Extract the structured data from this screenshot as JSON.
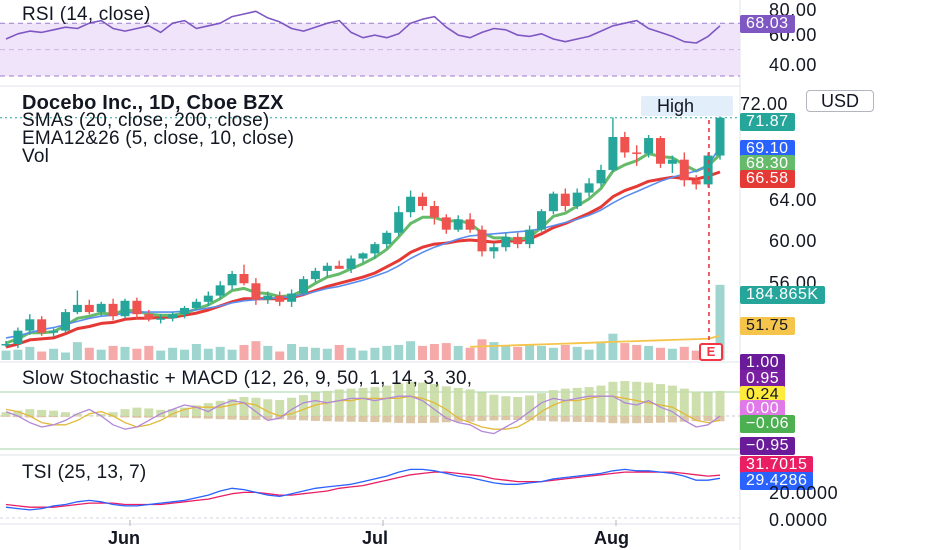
{
  "symbol_title": "Docebo Inc., 1D, Cboe BZX",
  "indicators": {
    "smas": "SMAs (20, close, 200, close)",
    "ema": "EMA12&26 (5, close, 10, close)",
    "vol": "Vol"
  },
  "currency_label": "USD",
  "high_label": "High",
  "earnings_marker": "E",
  "rsi": {
    "title": "RSI (14, close)",
    "scale": [
      "80.00",
      "60.00",
      "40.00"
    ],
    "value_tag": "68.03",
    "values": [
      58,
      62,
      64,
      63,
      65,
      67,
      66,
      70,
      72,
      66,
      64,
      66,
      68,
      63,
      70,
      72,
      66,
      68,
      70,
      75,
      77,
      79,
      74,
      71,
      66,
      64,
      67,
      70,
      72,
      63,
      59,
      61,
      59,
      62,
      70,
      73,
      75,
      67,
      61,
      59,
      63,
      66,
      65,
      61,
      60,
      62,
      58,
      56,
      58,
      60,
      64,
      68,
      70,
      72,
      66,
      63,
      60,
      56,
      55,
      60,
      68
    ]
  },
  "price": {
    "scale": [
      "72.00",
      "64.00",
      "60.00",
      "56.00"
    ],
    "tags": {
      "close": "71.87",
      "sma20": "69.10",
      "ema_fast": "68.30",
      "ema_slow": "66.58",
      "volume": "184.865K",
      "vol_ma": "51.75"
    },
    "candles": [
      [
        49.9,
        50.2,
        49.6,
        49.9
      ],
      [
        49.9,
        51.5,
        49.5,
        51.2
      ],
      [
        51.2,
        52.8,
        50.8,
        52.3
      ],
      [
        52.3,
        52.6,
        50.7,
        51.0
      ],
      [
        51.0,
        51.4,
        50.6,
        51.2
      ],
      [
        51.2,
        53.3,
        51.0,
        53.0
      ],
      [
        53.0,
        55.1,
        52.8,
        53.7
      ],
      [
        53.7,
        54.2,
        52.8,
        53.0
      ],
      [
        53.0,
        54.0,
        52.6,
        53.8
      ],
      [
        53.8,
        54.3,
        52.2,
        52.6
      ],
      [
        52.6,
        54.3,
        52.4,
        54.1
      ],
      [
        54.1,
        54.4,
        52.3,
        52.8
      ],
      [
        52.8,
        53.2,
        52.1,
        52.3
      ],
      [
        52.3,
        52.8,
        51.9,
        52.4
      ],
      [
        52.4,
        53.0,
        52.1,
        52.8
      ],
      [
        52.8,
        53.6,
        52.4,
        53.4
      ],
      [
        53.4,
        54.3,
        53.2,
        54.0
      ],
      [
        54.0,
        55.0,
        53.6,
        54.6
      ],
      [
        54.6,
        56.0,
        54.3,
        55.6
      ],
      [
        55.6,
        57.0,
        55.2,
        56.7
      ],
      [
        56.7,
        57.6,
        55.6,
        55.8
      ],
      [
        55.8,
        56.3,
        53.7,
        54.2
      ],
      [
        54.2,
        55.0,
        53.8,
        54.6
      ],
      [
        54.6,
        55.0,
        53.6,
        54.0
      ],
      [
        54.0,
        55.2,
        53.5,
        54.8
      ],
      [
        54.8,
        56.5,
        54.6,
        56.2
      ],
      [
        56.2,
        57.3,
        55.9,
        57.0
      ],
      [
        57.0,
        57.8,
        56.4,
        57.5
      ],
      [
        57.5,
        58.0,
        57.2,
        57.2
      ],
      [
        57.2,
        58.5,
        56.8,
        58.2
      ],
      [
        58.2,
        58.8,
        57.8,
        58.7
      ],
      [
        58.7,
        59.8,
        58.2,
        59.6
      ],
      [
        59.6,
        60.9,
        59.2,
        60.7
      ],
      [
        60.7,
        63.3,
        60.4,
        62.7
      ],
      [
        62.7,
        64.8,
        62.2,
        64.2
      ],
      [
        64.2,
        64.6,
        62.9,
        63.3
      ],
      [
        63.3,
        63.8,
        61.5,
        62.2
      ],
      [
        62.2,
        62.5,
        60.6,
        61.0
      ],
      [
        61.0,
        62.4,
        60.8,
        62.0
      ],
      [
        62.0,
        62.6,
        60.7,
        61.0
      ],
      [
        61.0,
        61.4,
        58.4,
        58.9
      ],
      [
        58.9,
        59.7,
        58.2,
        59.3
      ],
      [
        59.3,
        60.7,
        58.9,
        60.3
      ],
      [
        60.3,
        60.7,
        59.2,
        59.6
      ],
      [
        59.6,
        61.4,
        59.2,
        61.0
      ],
      [
        61.0,
        63.0,
        60.8,
        62.8
      ],
      [
        62.8,
        64.7,
        62.5,
        64.5
      ],
      [
        64.5,
        65.0,
        62.8,
        63.3
      ],
      [
        63.3,
        65.0,
        63.0,
        64.6
      ],
      [
        64.6,
        66.0,
        64.2,
        65.5
      ],
      [
        65.5,
        67.3,
        65.2,
        66.8
      ],
      [
        66.8,
        71.9,
        66.6,
        70.0
      ],
      [
        70.0,
        70.5,
        68.0,
        68.5
      ],
      [
        68.5,
        69.2,
        67.2,
        68.4
      ],
      [
        68.4,
        70.2,
        68.0,
        69.9
      ],
      [
        69.9,
        70.1,
        67.0,
        67.4
      ],
      [
        67.4,
        68.2,
        66.5,
        67.8
      ],
      [
        67.8,
        68.5,
        65.2,
        65.8
      ],
      [
        65.8,
        66.3,
        64.9,
        65.4
      ],
      [
        65.4,
        68.5,
        65.1,
        68.2
      ],
      [
        68.2,
        72.0,
        67.8,
        71.87
      ]
    ],
    "sma20": [
      50.5,
      50.7,
      51.0,
      51.3,
      51.5,
      51.8,
      52.1,
      52.4,
      52.6,
      52.7,
      52.9,
      53.0,
      53.0,
      53.0,
      53.0,
      53.1,
      53.2,
      53.4,
      53.6,
      53.9,
      54.1,
      54.2,
      54.3,
      54.4,
      54.5,
      54.7,
      55.0,
      55.3,
      55.5,
      55.8,
      56.1,
      56.5,
      56.9,
      57.5,
      58.2,
      58.8,
      59.3,
      59.7,
      60.1,
      60.4,
      60.5,
      60.6,
      60.7,
      60.8,
      60.9,
      61.1,
      61.4,
      61.7,
      62.0,
      62.4,
      62.9,
      63.6,
      64.2,
      64.7,
      65.2,
      65.7,
      66.1,
      66.4,
      66.7,
      67.2,
      69.1
    ],
    "ema_fast": [
      50.0,
      50.4,
      51.0,
      51.0,
      51.1,
      51.7,
      52.4,
      52.6,
      52.9,
      52.8,
      53.2,
      53.1,
      52.8,
      52.7,
      52.7,
      52.9,
      53.3,
      53.7,
      54.3,
      55.1,
      55.3,
      54.9,
      54.8,
      54.5,
      54.6,
      55.1,
      55.8,
      56.4,
      56.7,
      57.2,
      57.7,
      58.3,
      59.1,
      60.3,
      61.6,
      62.2,
      62.2,
      61.8,
      61.9,
      61.6,
      60.7,
      60.2,
      60.2,
      60.0,
      60.3,
      61.2,
      62.3,
      62.6,
      63.3,
      64.0,
      65.0,
      66.7,
      67.3,
      67.7,
      68.4,
      68.1,
      68.0,
      67.3,
      66.7,
      67.2,
      68.3
    ],
    "ema_slow": [
      49.6,
      49.9,
      50.3,
      50.4,
      50.5,
      50.9,
      51.4,
      51.6,
      51.9,
      52.0,
      52.3,
      52.4,
      52.4,
      52.5,
      52.5,
      52.7,
      52.9,
      53.2,
      53.6,
      54.0,
      54.3,
      54.3,
      54.3,
      54.3,
      54.4,
      54.7,
      55.1,
      55.5,
      55.8,
      56.1,
      56.4,
      56.8,
      57.4,
      58.0,
      58.8,
      59.3,
      59.6,
      59.7,
      59.9,
      60.0,
      59.9,
      59.8,
      59.9,
      59.9,
      60.1,
      60.6,
      61.2,
      61.6,
      62.1,
      62.6,
      63.2,
      64.2,
      64.8,
      65.2,
      65.7,
      65.9,
      66.1,
      66.0,
      65.9,
      66.2,
      66.6
    ],
    "volume": [
      20,
      22,
      28,
      18,
      24,
      16,
      38,
      26,
      22,
      30,
      28,
      24,
      30,
      20,
      26,
      22,
      34,
      24,
      28,
      22,
      32,
      40,
      30,
      18,
      34,
      28,
      26,
      24,
      32,
      26,
      20,
      26,
      30,
      32,
      40,
      30,
      34,
      36,
      30,
      26,
      44,
      38,
      30,
      28,
      34,
      30,
      26,
      32,
      28,
      22,
      36,
      56,
      36,
      32,
      30,
      26,
      24,
      28,
      20,
      22,
      185
    ],
    "vol_ma": [
      null,
      null,
      null,
      null,
      null,
      null,
      null,
      null,
      null,
      null,
      null,
      null,
      null,
      null,
      null,
      null,
      null,
      null,
      null,
      null,
      null,
      null,
      null,
      null,
      null,
      null,
      null,
      null,
      null,
      null,
      null,
      null,
      null,
      null,
      null,
      null,
      null,
      null,
      null,
      28.0,
      28.9,
      29.8,
      30.6,
      31.5,
      32.4,
      33.2,
      34.1,
      34.9,
      35.8,
      36.7,
      37.6,
      38.5,
      39.3,
      40.2,
      41.0,
      41.9,
      42.7,
      43.6,
      44.5,
      45.3,
      51.75
    ]
  },
  "stoch_macd": {
    "title": "Slow Stochastic + MACD (12, 26, 9, 50, 1, 14, 3, 30,",
    "tags": [
      "1.00",
      "0.95",
      "0.24",
      "0.00",
      "−0.06",
      "−0.95"
    ],
    "hist": [
      0.1,
      0.14,
      0.18,
      0.16,
      0.14,
      0.1,
      0.06,
      0.02,
      0.05,
      0.1,
      0.18,
      0.22,
      0.2,
      0.16,
      0.18,
      0.22,
      0.28,
      0.34,
      0.4,
      0.45,
      0.5,
      0.48,
      0.44,
      0.42,
      0.48,
      0.55,
      0.62,
      0.66,
      0.7,
      0.72,
      0.74,
      0.76,
      0.8,
      0.86,
      0.9,
      0.88,
      0.84,
      0.78,
      0.74,
      0.7,
      0.62,
      0.56,
      0.52,
      0.5,
      0.54,
      0.6,
      0.68,
      0.72,
      0.74,
      0.76,
      0.8,
      0.9,
      0.92,
      0.9,
      0.88,
      0.84,
      0.8,
      0.72,
      0.64,
      0.62,
      0.66
    ],
    "k": [
      0.2,
      0.0,
      -0.3,
      -0.5,
      -0.4,
      -0.2,
      0.1,
      0.3,
      0.0,
      -0.4,
      -0.6,
      -0.5,
      -0.2,
      0.1,
      0.3,
      0.5,
      0.4,
      0.2,
      0.5,
      0.7,
      0.6,
      0.2,
      -0.2,
      -0.1,
      0.3,
      0.6,
      0.7,
      0.6,
      0.7,
      0.8,
      0.8,
      0.7,
      0.8,
      0.9,
      0.9,
      0.7,
      0.3,
      -0.1,
      -0.3,
      -0.4,
      -0.7,
      -0.8,
      -0.5,
      -0.2,
      0.2,
      0.6,
      0.8,
      0.7,
      0.8,
      0.9,
      0.9,
      0.9,
      0.6,
      0.5,
      0.7,
      0.4,
      0.2,
      -0.2,
      -0.5,
      -0.4,
      0.0
    ],
    "d": [
      0.3,
      0.2,
      0.0,
      -0.3,
      -0.4,
      -0.4,
      -0.2,
      0.1,
      0.2,
      0.0,
      -0.3,
      -0.5,
      -0.4,
      -0.2,
      0.1,
      0.3,
      0.4,
      0.4,
      0.4,
      0.5,
      0.6,
      0.5,
      0.2,
      0.0,
      0.1,
      0.3,
      0.5,
      0.6,
      0.7,
      0.7,
      0.8,
      0.8,
      0.8,
      0.8,
      0.9,
      0.8,
      0.6,
      0.3,
      -0.1,
      -0.3,
      -0.5,
      -0.6,
      -0.6,
      -0.5,
      -0.2,
      0.2,
      0.5,
      0.7,
      0.7,
      0.8,
      0.9,
      0.9,
      0.8,
      0.7,
      0.6,
      0.5,
      0.4,
      0.1,
      -0.2,
      -0.3,
      -0.2
    ]
  },
  "tsi": {
    "title": "TSI (25, 13, 7)",
    "scale": [
      "20.0000",
      "0.0000"
    ],
    "tags": [
      "31.7015",
      "29.4286"
    ],
    "tsi_line": [
      8,
      7,
      6,
      7,
      9,
      10,
      12,
      13,
      12,
      10,
      9,
      9,
      10,
      11,
      12,
      13,
      15,
      17,
      20,
      22,
      21,
      19,
      17,
      16,
      18,
      20,
      22,
      23,
      24,
      25,
      27,
      29,
      31,
      34,
      36,
      36,
      35,
      33,
      31,
      30,
      28,
      26,
      25,
      25,
      26,
      27,
      29,
      30,
      31,
      32,
      33,
      35,
      36,
      35,
      35,
      34,
      33,
      31,
      28,
      28,
      29.4286
    ],
    "signal_line": [
      10,
      9,
      8,
      8,
      8,
      9,
      10,
      11,
      11,
      11,
      10,
      10,
      10,
      10,
      11,
      12,
      13,
      14,
      16,
      18,
      19,
      19,
      18,
      17,
      17,
      18,
      19,
      20,
      22,
      23,
      24,
      26,
      28,
      30,
      32,
      33,
      34,
      34,
      33,
      32,
      31,
      29,
      28,
      27,
      27,
      27,
      28,
      29,
      30,
      31,
      32,
      33,
      34,
      34,
      34,
      34,
      34,
      33,
      32,
      31,
      31.7015
    ]
  },
  "x_axis": [
    "Jun",
    "Jul",
    "Aug"
  ],
  "colors": {
    "up": "#26a69a",
    "down": "#ef5350",
    "up_vol": "#9ed6cf",
    "down_vol": "#f5a9a8",
    "rsi": "#7e57c2",
    "rsi_band": "#f0e4fb",
    "sma": "#5b8def",
    "ema_fast": "#66bb6a",
    "ema_slow": "#e53935",
    "vol_ma": "#f5c44b",
    "tsi": "#2962ff",
    "tsi_signal": "#e91e63"
  }
}
